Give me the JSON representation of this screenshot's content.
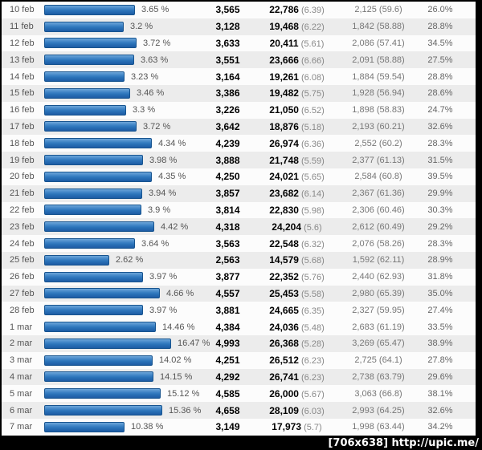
{
  "watermark": {
    "text": "[706x638] http://upic.me/"
  },
  "colors": {
    "bar_top": "#6ea6da",
    "bar_bottom": "#1d5ca4",
    "bar_border": "#17548f",
    "row_stripe": "#ececec",
    "row_plain": "#fcfcfc",
    "frame": "#000000",
    "text_muted": "#555555",
    "text_bold": "#000000"
  },
  "table": {
    "rows": [
      {
        "date": "10 feb",
        "bar_label": "3.65 %",
        "visits": "3,565",
        "pageviews": "22,786",
        "pageviews_paren": "(6.39)",
        "col4": "2,125 (59.6)",
        "col5": "26.0%"
      },
      {
        "date": "11 feb",
        "bar_label": "3.2 %",
        "visits": "3,128",
        "pageviews": "19,468",
        "pageviews_paren": "(6.22)",
        "col4": "1,842 (58.88)",
        "col5": "28.8%"
      },
      {
        "date": "12 feb",
        "bar_label": "3.72 %",
        "visits": "3,633",
        "pageviews": "20,411",
        "pageviews_paren": "(5.61)",
        "col4": "2,086 (57.41)",
        "col5": "34.5%"
      },
      {
        "date": "13 feb",
        "bar_label": "3.63 %",
        "visits": "3,551",
        "pageviews": "23,666",
        "pageviews_paren": "(6.66)",
        "col4": "2,091 (58.88)",
        "col5": "27.5%"
      },
      {
        "date": "14 feb",
        "bar_label": "3.23 %",
        "visits": "3,164",
        "pageviews": "19,261",
        "pageviews_paren": "(6.08)",
        "col4": "1,884 (59.54)",
        "col5": "28.8%"
      },
      {
        "date": "15 feb",
        "bar_label": "3.46 %",
        "visits": "3,386",
        "pageviews": "19,482",
        "pageviews_paren": "(5.75)",
        "col4": "1,928 (56.94)",
        "col5": "28.6%"
      },
      {
        "date": "16 feb",
        "bar_label": "3.3 %",
        "visits": "3,226",
        "pageviews": "21,050",
        "pageviews_paren": "(6.52)",
        "col4": "1,898 (58.83)",
        "col5": "24.7%"
      },
      {
        "date": "17 feb",
        "bar_label": "3.72 %",
        "visits": "3,642",
        "pageviews": "18,876",
        "pageviews_paren": "(5.18)",
        "col4": "2,193 (60.21)",
        "col5": "32.6%"
      },
      {
        "date": "18 feb",
        "bar_label": "4.34 %",
        "visits": "4,239",
        "pageviews": "26,974",
        "pageviews_paren": "(6.36)",
        "col4": "2,552 (60.2)",
        "col5": "28.3%"
      },
      {
        "date": "19 feb",
        "bar_label": "3.98 %",
        "visits": "3,888",
        "pageviews": "21,748",
        "pageviews_paren": "(5.59)",
        "col4": "2,377 (61.13)",
        "col5": "31.5%"
      },
      {
        "date": "20 feb",
        "bar_label": "4.35 %",
        "visits": "4,250",
        "pageviews": "24,021",
        "pageviews_paren": "(5.65)",
        "col4": "2,584 (60.8)",
        "col5": "39.5%"
      },
      {
        "date": "21 feb",
        "bar_label": "3.94 %",
        "visits": "3,857",
        "pageviews": "23,682",
        "pageviews_paren": "(6.14)",
        "col4": "2,367 (61.36)",
        "col5": "29.9%"
      },
      {
        "date": "22 feb",
        "bar_label": "3.9 %",
        "visits": "3,814",
        "pageviews": "22,830",
        "pageviews_paren": "(5.98)",
        "col4": "2,306 (60.46)",
        "col5": "30.3%"
      },
      {
        "date": "23 feb",
        "bar_label": "4.42 %",
        "visits": "4,318",
        "pageviews": "24,204",
        "pageviews_paren": "(5.6)",
        "col4": "2,612 (60.49)",
        "col5": "29.2%"
      },
      {
        "date": "24 feb",
        "bar_label": "3.64 %",
        "visits": "3,563",
        "pageviews": "22,548",
        "pageviews_paren": "(6.32)",
        "col4": "2,076 (58.26)",
        "col5": "28.3%"
      },
      {
        "date": "25 feb",
        "bar_label": "2.62 %",
        "visits": "2,563",
        "pageviews": "14,579",
        "pageviews_paren": "(5.68)",
        "col4": "1,592 (62.11)",
        "col5": "28.9%"
      },
      {
        "date": "26 feb",
        "bar_label": "3.97 %",
        "visits": "3,877",
        "pageviews": "22,352",
        "pageviews_paren": "(5.76)",
        "col4": "2,440 (62.93)",
        "col5": "31.8%"
      },
      {
        "date": "27 feb",
        "bar_label": "4.66 %",
        "visits": "4,557",
        "pageviews": "25,453",
        "pageviews_paren": "(5.58)",
        "col4": "2,980 (65.39)",
        "col5": "35.0%"
      },
      {
        "date": "28 feb",
        "bar_label": "3.97 %",
        "visits": "3,881",
        "pageviews": "24,665",
        "pageviews_paren": "(6.35)",
        "col4": "2,327 (59.95)",
        "col5": "27.4%"
      },
      {
        "date": "1 mar",
        "bar_label": "14.46 %",
        "visits": "4,384",
        "pageviews": "24,036",
        "pageviews_paren": "(5.48)",
        "col4": "2,683 (61.19)",
        "col5": "33.5%"
      },
      {
        "date": "2 mar",
        "bar_label": "16.47 %",
        "visits": "4,993",
        "pageviews": "26,368",
        "pageviews_paren": "(5.28)",
        "col4": "3,269 (65.47)",
        "col5": "38.9%"
      },
      {
        "date": "3 mar",
        "bar_label": "14.02 %",
        "visits": "4,251",
        "pageviews": "26,512",
        "pageviews_paren": "(6.23)",
        "col4": "2,725 (64.1)",
        "col5": "27.8%"
      },
      {
        "date": "4 mar",
        "bar_label": "14.15 %",
        "visits": "4,292",
        "pageviews": "26,741",
        "pageviews_paren": "(6.23)",
        "col4": "2,738 (63.79)",
        "col5": "29.6%"
      },
      {
        "date": "5 mar",
        "bar_label": "15.12 %",
        "visits": "4,585",
        "pageviews": "26,000",
        "pageviews_paren": "(5.67)",
        "col4": "3,063 (66.8)",
        "col5": "38.1%"
      },
      {
        "date": "6 mar",
        "bar_label": "15.36 %",
        "visits": "4,658",
        "pageviews": "28,109",
        "pageviews_paren": "(6.03)",
        "col4": "2,993 (64.25)",
        "col5": "32.6%"
      },
      {
        "date": "7 mar",
        "bar_label": "10.38 %",
        "visits": "3,149",
        "pageviews": "17,973",
        "pageviews_paren": "(5.7)",
        "col4": "1,998 (63.44)",
        "col5": "34.2%"
      }
    ]
  },
  "chart_data": {
    "type": "bar",
    "orientation": "horizontal",
    "title": "",
    "xlabel": "",
    "ylabel": "",
    "grid": false,
    "legend_position": "none",
    "bar_scaled_by": "col2_visits",
    "categories": [
      "10 feb",
      "11 feb",
      "12 feb",
      "13 feb",
      "14 feb",
      "15 feb",
      "16 feb",
      "17 feb",
      "18 feb",
      "19 feb",
      "20 feb",
      "21 feb",
      "22 feb",
      "23 feb",
      "24 feb",
      "25 feb",
      "26 feb",
      "27 feb",
      "28 feb",
      "1 mar",
      "2 mar",
      "3 mar",
      "4 mar",
      "5 mar",
      "6 mar",
      "7 mar"
    ],
    "series": [
      {
        "name": "bar_percent_label",
        "values": [
          3.65,
          3.2,
          3.72,
          3.63,
          3.23,
          3.46,
          3.3,
          3.72,
          4.34,
          3.98,
          4.35,
          3.94,
          3.9,
          4.42,
          3.64,
          2.62,
          3.97,
          4.66,
          3.97,
          14.46,
          16.47,
          14.02,
          14.15,
          15.12,
          15.36,
          10.38
        ]
      },
      {
        "name": "col2_visits",
        "values": [
          3565,
          3128,
          3633,
          3551,
          3164,
          3386,
          3226,
          3642,
          4239,
          3888,
          4250,
          3857,
          3814,
          4318,
          3563,
          2563,
          3877,
          4557,
          3881,
          4384,
          4993,
          4251,
          4292,
          4585,
          4658,
          3149
        ]
      },
      {
        "name": "col3_pageviews",
        "values": [
          22786,
          19468,
          20411,
          23666,
          19261,
          19482,
          21050,
          18876,
          26974,
          21748,
          24021,
          23682,
          22830,
          24204,
          22548,
          14579,
          22352,
          25453,
          24665,
          24036,
          26368,
          26512,
          26741,
          26000,
          28109,
          17973
        ]
      },
      {
        "name": "col3_paren_pages_per_visit",
        "values": [
          6.39,
          6.22,
          5.61,
          6.66,
          6.08,
          5.75,
          6.52,
          5.18,
          6.36,
          5.59,
          5.65,
          6.14,
          5.98,
          5.6,
          6.32,
          5.68,
          5.76,
          5.58,
          6.35,
          5.48,
          5.28,
          6.23,
          6.23,
          5.67,
          6.03,
          5.7
        ]
      },
      {
        "name": "col4_value",
        "values": [
          2125,
          1842,
          2086,
          2091,
          1884,
          1928,
          1898,
          2193,
          2552,
          2377,
          2584,
          2367,
          2306,
          2612,
          2076,
          1592,
          2440,
          2980,
          2327,
          2683,
          3269,
          2725,
          2738,
          3063,
          2993,
          1998
        ]
      },
      {
        "name": "col4_paren_value",
        "values": [
          59.6,
          58.88,
          57.41,
          58.88,
          59.54,
          56.94,
          58.83,
          60.21,
          60.2,
          61.13,
          60.8,
          61.36,
          60.46,
          60.49,
          58.26,
          62.11,
          62.93,
          65.39,
          59.95,
          61.19,
          65.47,
          64.1,
          63.79,
          66.8,
          64.25,
          63.44
        ]
      },
      {
        "name": "col5_percent",
        "values": [
          26.0,
          28.8,
          34.5,
          27.5,
          28.8,
          28.6,
          24.7,
          32.6,
          28.3,
          31.5,
          39.5,
          29.9,
          30.3,
          29.2,
          28.3,
          28.9,
          31.8,
          35.0,
          27.4,
          33.5,
          38.9,
          27.8,
          29.6,
          38.1,
          32.6,
          34.2
        ]
      }
    ]
  }
}
